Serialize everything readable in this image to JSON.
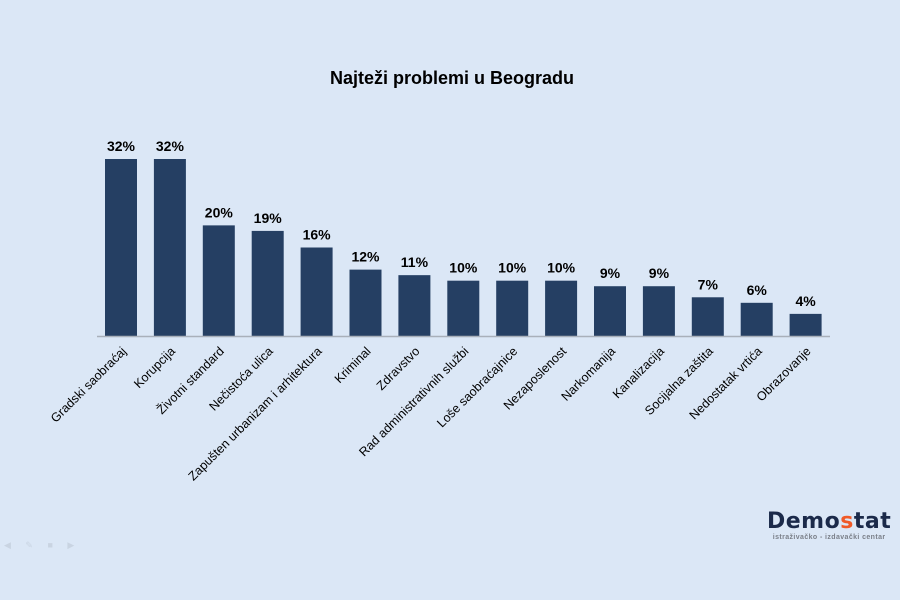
{
  "chart_data": {
    "type": "bar",
    "title": "Najteži problemi u Beogradu",
    "categories": [
      "Gradski saobraćaj",
      "Korupcija",
      "Životni standard",
      "Nečistoća ulica",
      "Zapušten urbanizam i arhitektura",
      "Kriminal",
      "Zdravstvo",
      "Rad administrativnih službi",
      "Loše saobraćajnice",
      "Nezaposlenost",
      "Narkomanija",
      "Kanalizacija",
      "Socijalna zaštita",
      "Nedostatak vrtića",
      "Obrazovanje"
    ],
    "values": [
      32,
      32,
      20,
      19,
      16,
      12,
      11,
      10,
      10,
      10,
      9,
      9,
      7,
      6,
      4
    ],
    "value_suffix": "%",
    "ylim": [
      0,
      32
    ],
    "grid": false,
    "legend": "none",
    "bar_color": "#253f63",
    "xlabel": "",
    "ylabel": ""
  },
  "logo": {
    "name_start": "Demo",
    "name_accent": "s",
    "name_end": "tat",
    "tagline": "istraživačko - izdavački centar",
    "accent_color": "#f05a28"
  }
}
